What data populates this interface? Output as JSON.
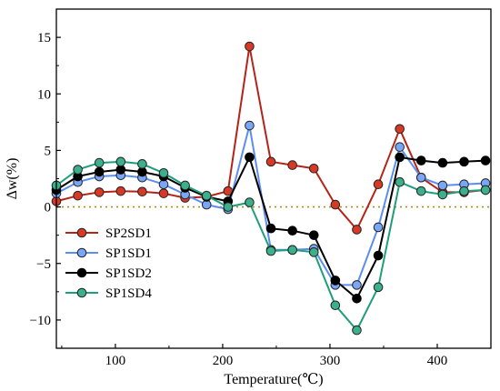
{
  "chart_data": {
    "type": "line",
    "xlabel": "Temperature(℃)",
    "ylabel": "Δw(%)",
    "xlim": [
      45,
      450
    ],
    "ylim": [
      -12.5,
      17.5
    ],
    "x_ticks": [
      100,
      200,
      300,
      400
    ],
    "y_ticks": [
      -10,
      -5,
      0,
      5,
      10,
      15
    ],
    "x_tick_labels": [
      "100",
      "200",
      "300",
      "400"
    ],
    "y_tick_labels": [
      "−10",
      "−5",
      "0",
      "5",
      "10",
      "15"
    ],
    "reference_line": {
      "y": 0,
      "style": "dotted",
      "color": "#a09020"
    },
    "legend_position": "lower-left",
    "grid": false,
    "x": [
      45,
      65,
      85,
      105,
      125,
      145,
      165,
      185,
      205,
      225,
      245,
      265,
      285,
      305,
      325,
      345,
      365,
      385,
      405,
      425,
      445
    ],
    "series": [
      {
        "name": "SP2SD1",
        "color": "#b52318",
        "marker_color": "#d63a26",
        "values": [
          0.5,
          1.0,
          1.3,
          1.4,
          1.35,
          1.2,
          0.8,
          0.9,
          1.4,
          14.2,
          4.0,
          3.7,
          3.4,
          0.2,
          -2.0,
          2.0,
          6.9,
          2.6,
          1.3,
          1.3,
          1.5
        ]
      },
      {
        "name": "SP1SD1",
        "color": "#5b8ef0",
        "marker_color": "#7aa6f8",
        "values": [
          1.2,
          2.2,
          2.7,
          2.8,
          2.6,
          2.0,
          1.1,
          0.2,
          -0.2,
          7.2,
          -3.8,
          -3.8,
          -3.7,
          -6.9,
          -6.9,
          -1.8,
          5.3,
          2.6,
          1.9,
          2.0,
          2.1
        ]
      },
      {
        "name": "SP1SD2",
        "color": "#000000",
        "marker_color": "#000000",
        "values": [
          1.5,
          2.7,
          3.1,
          3.3,
          3.1,
          2.7,
          1.7,
          0.9,
          0.5,
          4.4,
          -1.9,
          -2.1,
          -2.5,
          -6.5,
          -8.1,
          -4.3,
          4.4,
          4.1,
          3.9,
          4.0,
          4.1
        ]
      },
      {
        "name": "SP1SD4",
        "color": "#1e9e7a",
        "marker_color": "#3cb08c",
        "values": [
          1.9,
          3.3,
          3.9,
          4.0,
          3.8,
          3.0,
          1.9,
          1.0,
          0.0,
          0.4,
          -3.9,
          -3.8,
          -4.0,
          -8.7,
          -10.9,
          -7.1,
          2.2,
          1.4,
          1.1,
          1.4,
          1.5
        ]
      }
    ]
  }
}
